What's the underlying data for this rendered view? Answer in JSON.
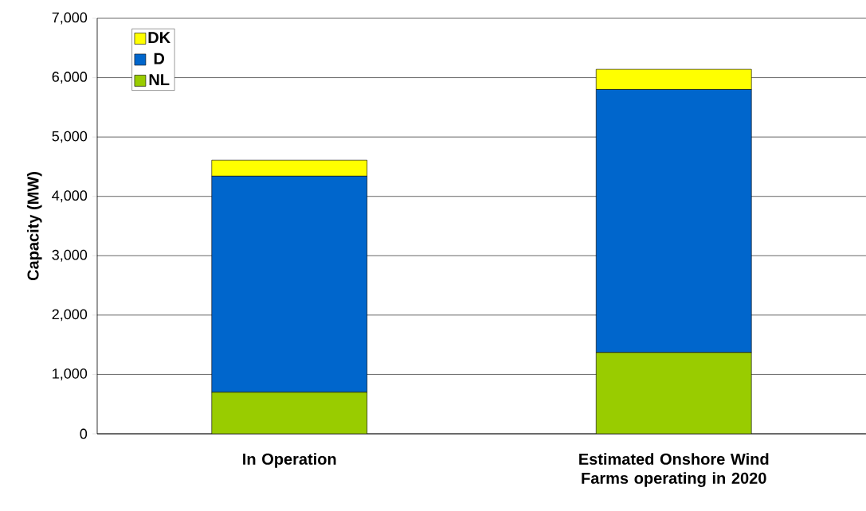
{
  "chart_data": {
    "type": "bar",
    "stacked": true,
    "categories": [
      "In Operation",
      "Estimated Onshore Wind Farms operating in 2020"
    ],
    "series": [
      {
        "name": "NL",
        "color": "#99cc00",
        "values": [
          700,
          1370
        ]
      },
      {
        "name": "D",
        "color": "#0066cc",
        "values": [
          3640,
          4430
        ]
      },
      {
        "name": "DK",
        "color": "#ffff00",
        "values": [
          270,
          340
        ]
      }
    ],
    "ylabel": "Capacity (MW)",
    "ylim": [
      0,
      7000
    ],
    "yticks": [
      {
        "value": 0,
        "label": "0"
      },
      {
        "value": 1000,
        "label": "1,000"
      },
      {
        "value": 2000,
        "label": "2,000"
      },
      {
        "value": 3000,
        "label": "3,000"
      },
      {
        "value": 4000,
        "label": "4,000"
      },
      {
        "value": 5000,
        "label": "5,000"
      },
      {
        "value": 6000,
        "label": "6,000"
      },
      {
        "value": 7000,
        "label": "7,000"
      }
    ],
    "grid": "y",
    "legend": "top left"
  }
}
